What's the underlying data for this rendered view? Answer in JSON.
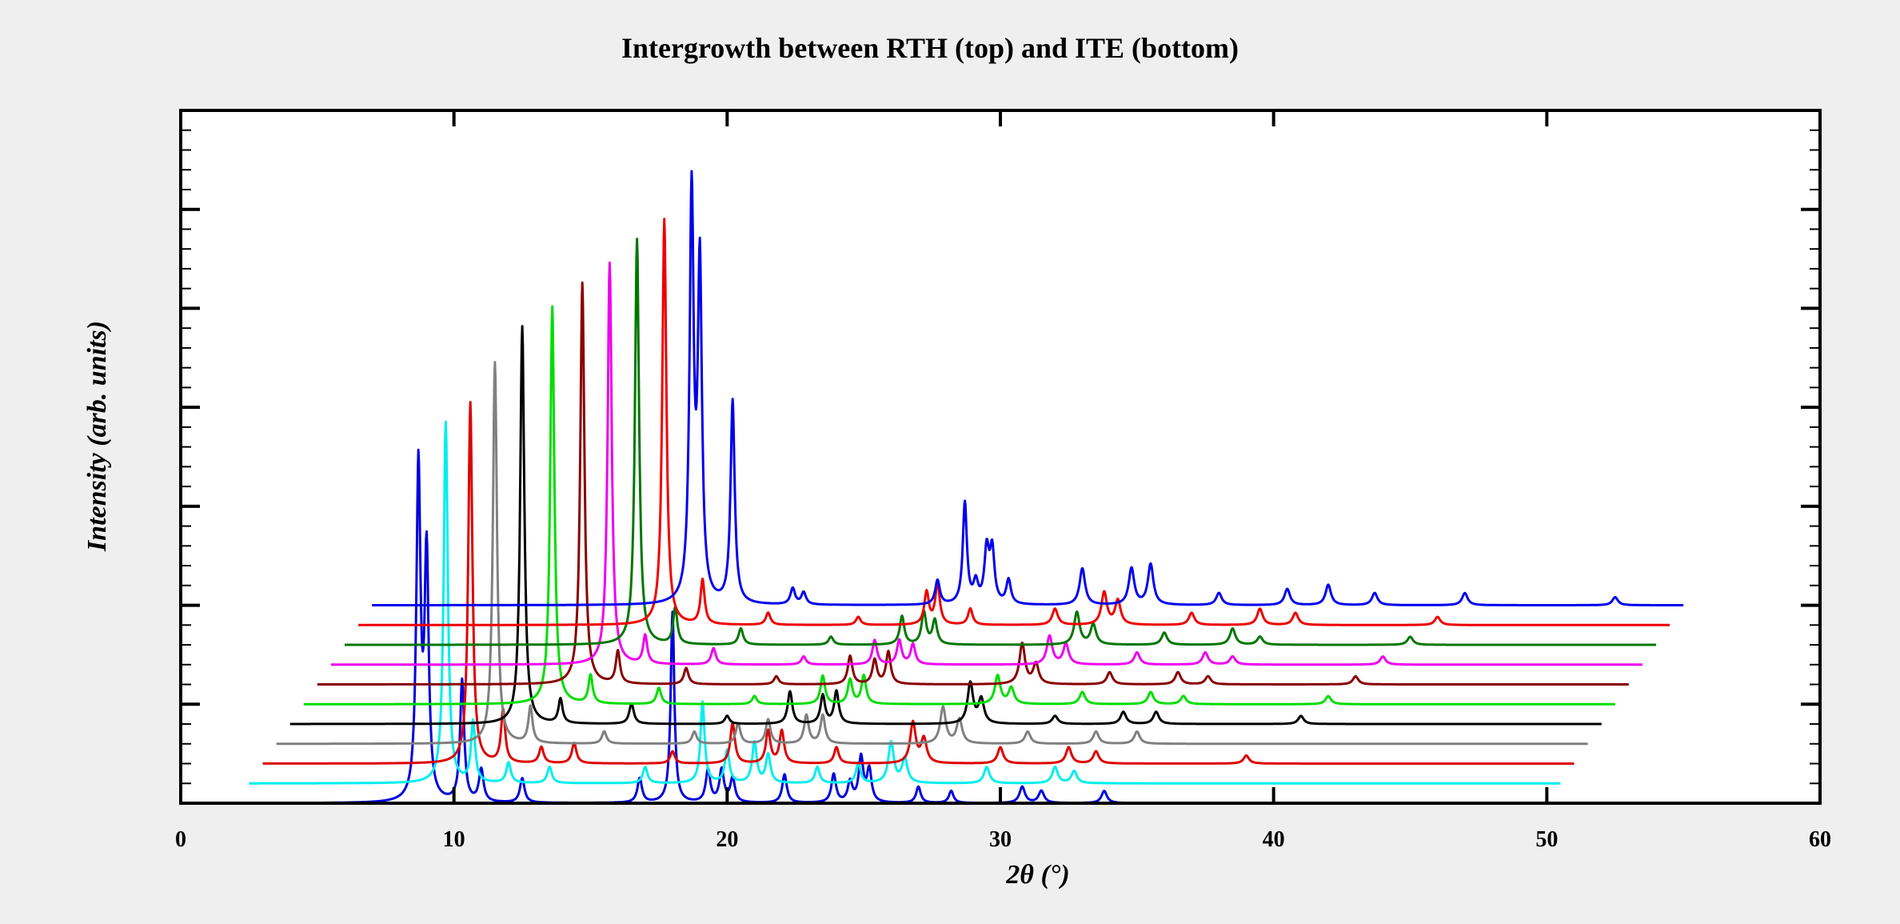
{
  "chart_data": {
    "type": "line",
    "title": "Intergrowth between RTH (top) and ITE (bottom)",
    "xlabel": "2θ (°)",
    "ylabel": "Intensity (arb. units)",
    "xlim": [
      0,
      60
    ],
    "x_ticks": [
      "0",
      "10",
      "20",
      "30",
      "40",
      "50",
      "60"
    ],
    "y_tick_labels_shown": false,
    "grid": false,
    "legend": "none",
    "plot_background": "#ffffff",
    "page_background": "#efefef",
    "waterfall": {
      "x_shift_per_trace_deg": 0.5,
      "y_offset_per_trace": 0.2,
      "intensity_scale": 4.1,
      "y_axis_range": [
        0,
        7
      ],
      "x_start_deg": 2,
      "x_end_deg": 50,
      "bottom_trace": "ITE",
      "top_trace": "RTH"
    },
    "series": [
      {
        "color": "#0000dd",
        "peaks": [
          [
            8.7,
            0.82,
            0.09
          ],
          [
            9.0,
            0.6,
            0.09
          ],
          [
            10.3,
            0.3,
            0.09
          ],
          [
            11.0,
            0.08,
            0.1
          ],
          [
            12.5,
            0.06,
            0.1
          ],
          [
            16.8,
            0.06,
            0.1
          ],
          [
            18.0,
            0.47,
            0.08
          ],
          [
            19.3,
            0.08,
            0.1
          ],
          [
            19.8,
            0.08,
            0.1
          ],
          [
            20.2,
            0.06,
            0.1
          ],
          [
            22.1,
            0.07,
            0.1
          ],
          [
            23.9,
            0.07,
            0.1
          ],
          [
            24.5,
            0.05,
            0.1
          ],
          [
            24.9,
            0.11,
            0.1
          ],
          [
            25.2,
            0.08,
            0.1
          ],
          [
            27.0,
            0.04,
            0.1
          ],
          [
            28.2,
            0.03,
            0.1
          ],
          [
            30.8,
            0.04,
            0.12
          ],
          [
            31.5,
            0.03,
            0.12
          ],
          [
            33.8,
            0.03,
            0.12
          ]
        ]
      },
      {
        "color": "#00eeee",
        "peaks": [
          [
            9.2,
            0.89,
            0.09
          ],
          [
            10.2,
            0.15,
            0.09
          ],
          [
            11.5,
            0.05,
            0.1
          ],
          [
            13.0,
            0.04,
            0.1
          ],
          [
            16.5,
            0.04,
            0.1
          ],
          [
            18.6,
            0.2,
            0.09
          ],
          [
            19.5,
            0.08,
            0.1
          ],
          [
            20.5,
            0.1,
            0.1
          ],
          [
            21.0,
            0.07,
            0.1
          ],
          [
            22.8,
            0.04,
            0.1
          ],
          [
            24.3,
            0.05,
            0.1
          ],
          [
            25.5,
            0.1,
            0.12
          ],
          [
            26.0,
            0.06,
            0.12
          ],
          [
            29.0,
            0.04,
            0.12
          ],
          [
            31.5,
            0.04,
            0.12
          ],
          [
            32.2,
            0.03,
            0.12
          ]
        ]
      },
      {
        "color": "#dd0000",
        "peaks": [
          [
            9.6,
            0.89,
            0.09
          ],
          [
            10.8,
            0.13,
            0.09
          ],
          [
            12.2,
            0.04,
            0.1
          ],
          [
            13.4,
            0.05,
            0.1
          ],
          [
            17.0,
            0.03,
            0.1
          ],
          [
            19.2,
            0.1,
            0.1
          ],
          [
            20.5,
            0.08,
            0.1
          ],
          [
            21.0,
            0.08,
            0.1
          ],
          [
            23.0,
            0.04,
            0.1
          ],
          [
            25.8,
            0.1,
            0.12
          ],
          [
            26.2,
            0.06,
            0.12
          ],
          [
            29.0,
            0.04,
            0.12
          ],
          [
            31.5,
            0.04,
            0.12
          ],
          [
            32.5,
            0.03,
            0.12
          ],
          [
            38.0,
            0.02,
            0.12
          ]
        ]
      },
      {
        "color": "#808080",
        "peaks": [
          [
            10.0,
            0.94,
            0.09
          ],
          [
            11.3,
            0.09,
            0.09
          ],
          [
            14.0,
            0.03,
            0.1
          ],
          [
            17.3,
            0.03,
            0.1
          ],
          [
            18.9,
            0.05,
            0.1
          ],
          [
            20.0,
            0.06,
            0.1
          ],
          [
            21.4,
            0.07,
            0.1
          ],
          [
            22.0,
            0.07,
            0.1
          ],
          [
            26.4,
            0.09,
            0.12
          ],
          [
            27.0,
            0.06,
            0.12
          ],
          [
            29.5,
            0.03,
            0.12
          ],
          [
            32.0,
            0.03,
            0.12
          ],
          [
            33.5,
            0.03,
            0.12
          ]
        ]
      },
      {
        "color": "#000000",
        "peaks": [
          [
            10.5,
            0.98,
            0.09
          ],
          [
            11.9,
            0.06,
            0.09
          ],
          [
            14.5,
            0.05,
            0.1
          ],
          [
            18.0,
            0.02,
            0.1
          ],
          [
            20.3,
            0.08,
            0.1
          ],
          [
            21.5,
            0.07,
            0.1
          ],
          [
            22.0,
            0.08,
            0.1
          ],
          [
            26.9,
            0.1,
            0.12
          ],
          [
            27.3,
            0.06,
            0.12
          ],
          [
            30.0,
            0.02,
            0.12
          ],
          [
            32.5,
            0.03,
            0.12
          ],
          [
            33.7,
            0.03,
            0.12
          ],
          [
            39.0,
            0.02,
            0.12
          ]
        ]
      },
      {
        "color": "#00dd00",
        "peaks": [
          [
            11.1,
            0.98,
            0.09
          ],
          [
            12.5,
            0.07,
            0.09
          ],
          [
            15.0,
            0.04,
            0.1
          ],
          [
            18.5,
            0.02,
            0.1
          ],
          [
            21.0,
            0.07,
            0.1
          ],
          [
            22.0,
            0.06,
            0.1
          ],
          [
            22.5,
            0.07,
            0.1
          ],
          [
            27.4,
            0.07,
            0.12
          ],
          [
            27.9,
            0.04,
            0.12
          ],
          [
            30.5,
            0.03,
            0.12
          ],
          [
            33.0,
            0.03,
            0.12
          ],
          [
            34.2,
            0.02,
            0.12
          ],
          [
            39.5,
            0.02,
            0.12
          ]
        ]
      },
      {
        "color": "#880000",
        "peaks": [
          [
            11.7,
            0.99,
            0.09
          ],
          [
            13.0,
            0.08,
            0.09
          ],
          [
            15.5,
            0.04,
            0.1
          ],
          [
            18.8,
            0.02,
            0.1
          ],
          [
            21.5,
            0.07,
            0.1
          ],
          [
            22.4,
            0.06,
            0.1
          ],
          [
            22.9,
            0.08,
            0.1
          ],
          [
            27.8,
            0.1,
            0.12
          ],
          [
            28.3,
            0.05,
            0.12
          ],
          [
            31.0,
            0.03,
            0.12
          ],
          [
            33.5,
            0.03,
            0.12
          ],
          [
            34.6,
            0.02,
            0.12
          ],
          [
            40.0,
            0.02,
            0.12
          ]
        ]
      },
      {
        "color": "#ee00ee",
        "peaks": [
          [
            12.2,
            0.99,
            0.09
          ],
          [
            13.5,
            0.07,
            0.09
          ],
          [
            16.0,
            0.04,
            0.1
          ],
          [
            19.3,
            0.02,
            0.1
          ],
          [
            21.9,
            0.06,
            0.1
          ],
          [
            22.8,
            0.06,
            0.1
          ],
          [
            23.3,
            0.05,
            0.1
          ],
          [
            28.3,
            0.07,
            0.12
          ],
          [
            28.9,
            0.05,
            0.12
          ],
          [
            31.5,
            0.03,
            0.12
          ],
          [
            34.0,
            0.03,
            0.12
          ],
          [
            35.0,
            0.02,
            0.12
          ],
          [
            40.5,
            0.02,
            0.12
          ]
        ]
      },
      {
        "color": "#007700",
        "peaks": [
          [
            12.7,
            1.0,
            0.09
          ],
          [
            14.1,
            0.09,
            0.09
          ],
          [
            16.5,
            0.04,
            0.1
          ],
          [
            19.8,
            0.02,
            0.1
          ],
          [
            22.4,
            0.07,
            0.1
          ],
          [
            23.2,
            0.08,
            0.1
          ],
          [
            23.6,
            0.06,
            0.1
          ],
          [
            28.8,
            0.08,
            0.12
          ],
          [
            29.4,
            0.05,
            0.12
          ],
          [
            32.0,
            0.03,
            0.12
          ],
          [
            34.5,
            0.04,
            0.12
          ],
          [
            35.5,
            0.02,
            0.12
          ],
          [
            41.0,
            0.02,
            0.12
          ]
        ]
      },
      {
        "color": "#ee0000",
        "peaks": [
          [
            13.2,
            1.0,
            0.09
          ],
          [
            14.6,
            0.11,
            0.09
          ],
          [
            17.0,
            0.03,
            0.1
          ],
          [
            20.3,
            0.02,
            0.1
          ],
          [
            22.8,
            0.08,
            0.1
          ],
          [
            23.2,
            0.1,
            0.1
          ],
          [
            24.4,
            0.04,
            0.1
          ],
          [
            27.5,
            0.04,
            0.12
          ],
          [
            29.3,
            0.08,
            0.12
          ],
          [
            29.8,
            0.06,
            0.12
          ],
          [
            32.5,
            0.03,
            0.12
          ],
          [
            35.0,
            0.04,
            0.12
          ],
          [
            36.3,
            0.03,
            0.12
          ],
          [
            41.5,
            0.02,
            0.12
          ]
        ]
      },
      {
        "color": "#0000ee",
        "peaks": [
          [
            13.7,
            1.0,
            0.09
          ],
          [
            14.0,
            0.82,
            0.09
          ],
          [
            15.2,
            0.5,
            0.09
          ],
          [
            17.4,
            0.04,
            0.1
          ],
          [
            17.8,
            0.03,
            0.1
          ],
          [
            22.7,
            0.06,
            0.1
          ],
          [
            23.7,
            0.25,
            0.09
          ],
          [
            24.1,
            0.05,
            0.1
          ],
          [
            24.5,
            0.13,
            0.1
          ],
          [
            24.7,
            0.13,
            0.1
          ],
          [
            25.3,
            0.06,
            0.1
          ],
          [
            28.0,
            0.09,
            0.12
          ],
          [
            29.8,
            0.09,
            0.12
          ],
          [
            30.5,
            0.1,
            0.12
          ],
          [
            33.0,
            0.03,
            0.12
          ],
          [
            35.5,
            0.04,
            0.12
          ],
          [
            37.0,
            0.05,
            0.12
          ],
          [
            38.7,
            0.03,
            0.12
          ],
          [
            42.0,
            0.03,
            0.12
          ],
          [
            47.5,
            0.02,
            0.12
          ]
        ]
      }
    ]
  }
}
